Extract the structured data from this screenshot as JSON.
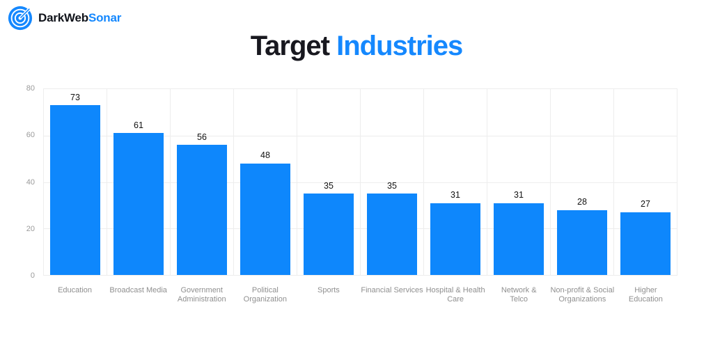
{
  "logo": {
    "icon": "sonar-target-icon",
    "brand_dark": "DarkWeb",
    "brand_accent": "Sonar"
  },
  "title": {
    "dark": "Target",
    "accent": "Industries"
  },
  "colors": {
    "accent": "#1588fe",
    "bar": "#0e87fc",
    "grid": "#ededed",
    "axis_text": "#9a9a9a",
    "value_text": "#111111",
    "title_dark": "#18181f"
  },
  "chart_data": {
    "type": "bar",
    "title": "Target Industries",
    "xlabel": "",
    "ylabel": "",
    "categories": [
      "Education",
      "Broadcast Media",
      "Government Administration",
      "Political Organization",
      "Sports",
      "Financial Services",
      "Hospital & Health Care",
      "Network & Telco",
      "Non-profit & Social Organizations",
      "Higher Education"
    ],
    "category_lines": [
      [
        "Education"
      ],
      [
        "Broadcast Media"
      ],
      [
        "Government",
        "Administration"
      ],
      [
        "Political",
        "Organization"
      ],
      [
        "Sports"
      ],
      [
        "Financial Services"
      ],
      [
        "Hospital & Health",
        "Care"
      ],
      [
        "Network &",
        "Telco"
      ],
      [
        "Non-profit & Social",
        "Organizations"
      ],
      [
        "Higher",
        "Education"
      ]
    ],
    "values": [
      73,
      61,
      56,
      48,
      35,
      35,
      31,
      31,
      28,
      27
    ],
    "ylim": [
      0,
      80
    ],
    "yticks": [
      0,
      20,
      40,
      60,
      80
    ],
    "grid": true,
    "legend": "none",
    "bar_color": "#0e87fc"
  }
}
